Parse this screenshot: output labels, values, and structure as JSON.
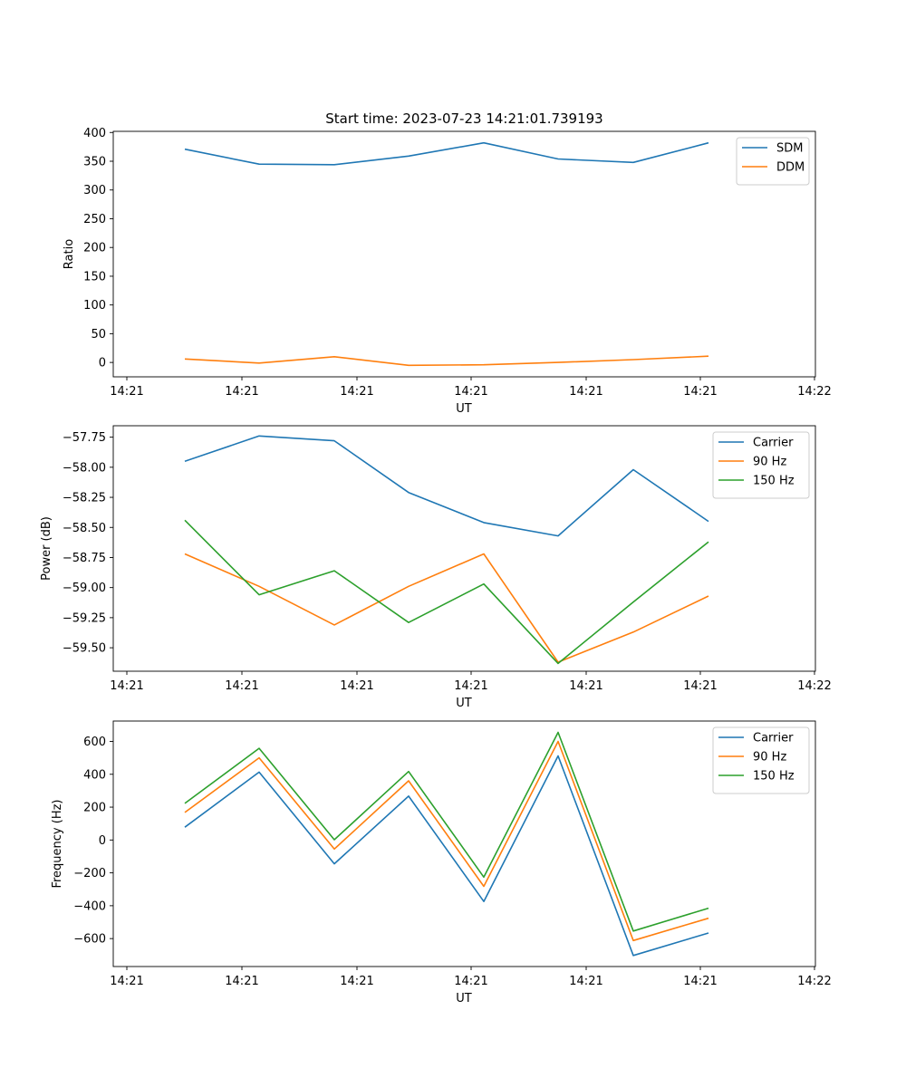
{
  "figure": {
    "title": "Start time: 2023-07-23 14:21:01.739193"
  },
  "chart_data": [
    {
      "type": "line",
      "title": "Start time: 2023-07-23 14:21:01.739193",
      "xlabel": "UT",
      "ylabel": "Ratio",
      "x_tick_labels": [
        "14:21",
        "14:21",
        "14:21",
        "14:21",
        "14:21",
        "14:21",
        "14:22"
      ],
      "y_ticks": [
        0,
        50,
        100,
        150,
        200,
        250,
        300,
        350,
        400
      ],
      "y_tick_labels": [
        "0",
        "50",
        "100",
        "150",
        "200",
        "250",
        "300",
        "350",
        "400"
      ],
      "ylim": [
        -25,
        402
      ],
      "legend": "upper-right",
      "series": [
        {
          "name": "SDM",
          "color": "#1f77b4",
          "values": [
            371,
            345,
            344,
            359,
            382,
            354,
            348,
            382
          ]
        },
        {
          "name": "DDM",
          "color": "#ff7f0e",
          "values": [
            6,
            -1,
            10,
            -5,
            -4,
            0,
            5,
            11
          ]
        }
      ]
    },
    {
      "type": "line",
      "title": "",
      "xlabel": "UT",
      "ylabel": "Power (dB)",
      "x_tick_labels": [
        "14:21",
        "14:21",
        "14:21",
        "14:21",
        "14:21",
        "14:21",
        "14:22"
      ],
      "y_ticks": [
        -57.75,
        -58.0,
        -58.25,
        -58.5,
        -58.75,
        -59.0,
        -59.25,
        -59.5
      ],
      "y_tick_labels": [
        "−57.75",
        "−58.00",
        "−58.25",
        "−58.50",
        "−58.75",
        "−59.00",
        "−59.25",
        "−59.50"
      ],
      "ylim": [
        -59.695,
        -57.655
      ],
      "legend": "upper-right",
      "series": [
        {
          "name": "Carrier",
          "color": "#1f77b4",
          "values": [
            -57.95,
            -57.74,
            -57.78,
            -58.21,
            -58.46,
            -58.57,
            -58.02,
            -58.45
          ]
        },
        {
          "name": "90 Hz",
          "color": "#ff7f0e",
          "values": [
            -58.72,
            -58.99,
            -59.31,
            -58.99,
            -58.72,
            -59.62,
            -59.37,
            -59.07
          ]
        },
        {
          "name": "150 Hz",
          "color": "#2ca02c",
          "values": [
            -58.44,
            -59.06,
            -58.86,
            -59.29,
            -58.97,
            -59.63,
            -59.12,
            -58.62
          ]
        }
      ]
    },
    {
      "type": "line",
      "title": "",
      "xlabel": "UT",
      "ylabel": "Frequency (Hz)",
      "x_tick_labels": [
        "14:21",
        "14:21",
        "14:21",
        "14:21",
        "14:21",
        "14:21",
        "14:22"
      ],
      "y_ticks": [
        600,
        400,
        200,
        0,
        -200,
        -400,
        -600
      ],
      "y_tick_labels": [
        "600",
        "400",
        "200",
        "0",
        "−200",
        "−400",
        "−600"
      ],
      "ylim": [
        -770,
        724
      ],
      "legend": "upper-right",
      "series": [
        {
          "name": "Carrier",
          "color": "#1f77b4",
          "values": [
            78,
            413,
            -145,
            267,
            -374,
            512,
            -703,
            -566
          ]
        },
        {
          "name": "90 Hz",
          "color": "#ff7f0e",
          "values": [
            168,
            500,
            -55,
            360,
            -282,
            600,
            -612,
            -476
          ]
        },
        {
          "name": "150 Hz",
          "color": "#2ca02c",
          "values": [
            223,
            558,
            2,
            417,
            -226,
            655,
            -554,
            -415
          ]
        }
      ]
    }
  ]
}
